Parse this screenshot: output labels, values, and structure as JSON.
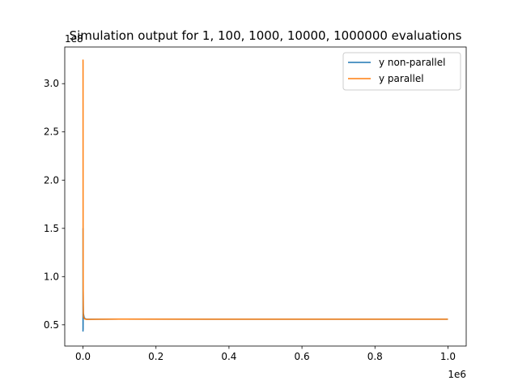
{
  "chart_data": {
    "type": "line",
    "title": "Simulation output for 1, 100, 1000, 10000, 1000000 evaluations",
    "xlabel": "",
    "ylabel": "",
    "x_offset_label": "1e6",
    "y_offset_label": "1e8",
    "xlim": [
      -50000,
      1050000
    ],
    "ylim": [
      0.28,
      3.38
    ],
    "x_ticks": [
      0,
      200000,
      400000,
      600000,
      800000,
      1000000
    ],
    "x_tick_labels": [
      "0.0",
      "0.2",
      "0.4",
      "0.6",
      "0.8",
      "1.0"
    ],
    "y_ticks": [
      0.5,
      1.0,
      1.5,
      2.0,
      2.5,
      3.0
    ],
    "y_tick_labels": [
      "0.5",
      "1.0",
      "1.5",
      "2.0",
      "2.5",
      "3.0"
    ],
    "grid": false,
    "legend": "top-right",
    "series": [
      {
        "name": "y non-parallel",
        "color": "#1f77b4",
        "x": [
          0,
          100,
          300,
          500,
          1000,
          3000,
          5000,
          10000,
          50000,
          100000,
          1000000
        ],
        "y": [
          0.43,
          1.5,
          0.45,
          0.85,
          0.62,
          0.58,
          0.565,
          0.558,
          0.558,
          0.559,
          0.558
        ]
      },
      {
        "name": "y parallel",
        "color": "#ff7f0e",
        "x": [
          0,
          100,
          300,
          600,
          1000,
          2000,
          5000,
          10000,
          50000,
          100000,
          1000000
        ],
        "y": [
          3.25,
          3.22,
          1.3,
          0.7,
          0.6,
          0.575,
          0.56,
          0.556,
          0.558,
          0.559,
          0.558
        ]
      }
    ]
  }
}
